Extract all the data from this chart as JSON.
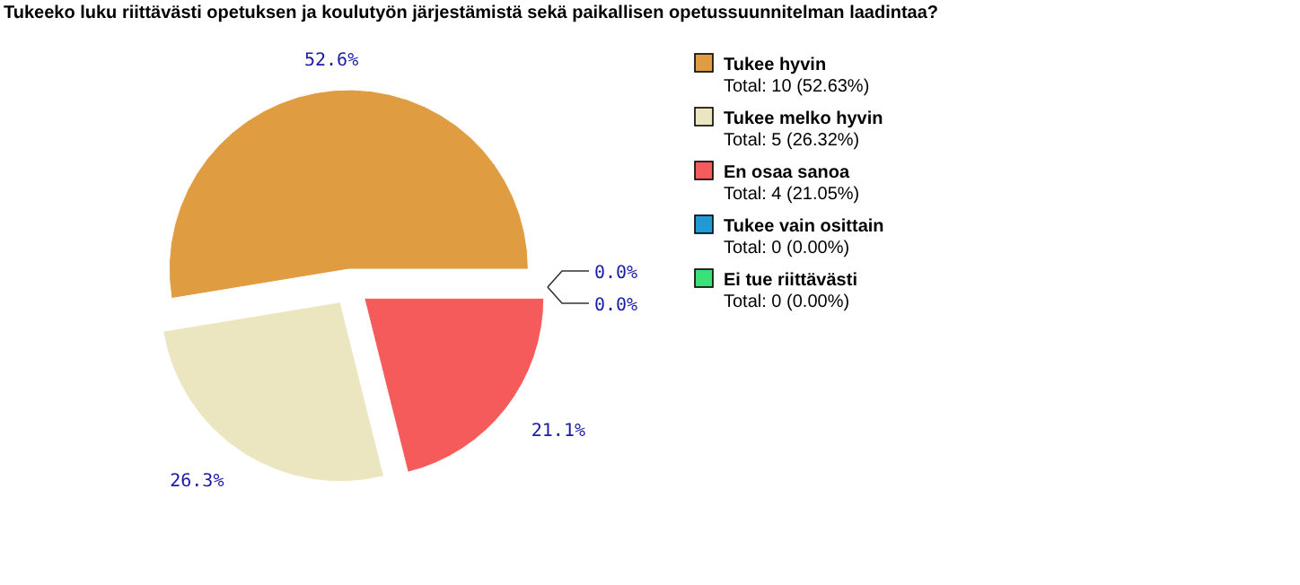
{
  "chart_data": {
    "type": "pie",
    "title": "Tukeeko luku riittävästi opetuksen ja koulutyön järjestämistä sekä paikallisen opetussuunnitelman laadintaa?",
    "categories": [
      "Tukee hyvin",
      "Tukee melko hyvin",
      "En osaa sanoa",
      "Tukee vain osittain",
      "Ei tue riittävästi"
    ],
    "values": [
      52.6,
      26.3,
      21.1,
      0,
      0
    ],
    "colors": [
      "#e09c41",
      "#ebe6c0",
      "#f55b5b",
      "#1f9ad6",
      "#3be07a"
    ],
    "value_labels": [
      "52.6%",
      "26.3%",
      "21.1%",
      "0.0%",
      "0.0%"
    ],
    "annotations": [
      "Total: 10 (52.63%)",
      "Total: 5 (26.32%)",
      "Total: 4 (21.05%)",
      "Total: 0 (0.00%)",
      "Total: 0 (0.00%)"
    ],
    "legend": "right"
  }
}
